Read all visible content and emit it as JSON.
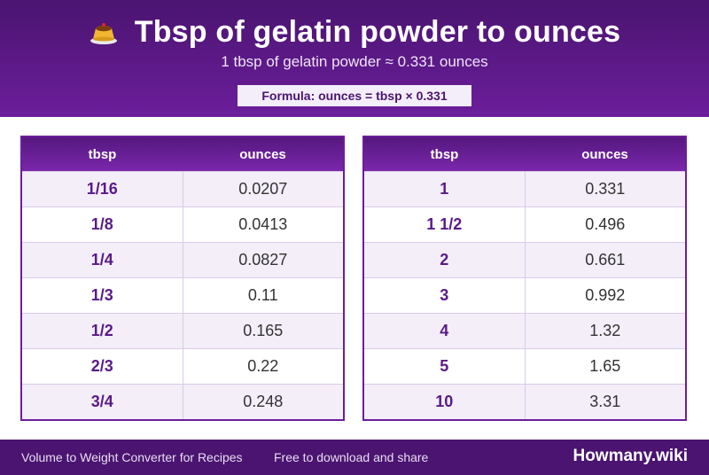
{
  "header": {
    "title": "Tbsp of gelatin powder to ounces",
    "icon": "pudding-icon",
    "subtitle": "1 tbsp of gelatin powder ≈ 0.331 ounces",
    "formula": "Formula: ounces = tbsp × 0.331"
  },
  "tables": [
    {
      "headers": [
        "tbsp",
        "ounces"
      ],
      "rows": [
        [
          "1/16",
          "0.0207"
        ],
        [
          "1/8",
          "0.0413"
        ],
        [
          "1/4",
          "0.0827"
        ],
        [
          "1/3",
          "0.11"
        ],
        [
          "1/2",
          "0.165"
        ],
        [
          "2/3",
          "0.22"
        ],
        [
          "3/4",
          "0.248"
        ]
      ]
    },
    {
      "headers": [
        "tbsp",
        "ounces"
      ],
      "rows": [
        [
          "1",
          "0.331"
        ],
        [
          "1 1/2",
          "0.496"
        ],
        [
          "2",
          "0.661"
        ],
        [
          "3",
          "0.992"
        ],
        [
          "4",
          "1.32"
        ],
        [
          "5",
          "1.65"
        ],
        [
          "10",
          "3.31"
        ]
      ]
    }
  ],
  "footer": {
    "left": "Volume to Weight Converter for Recipes",
    "middle": "Free to download and share",
    "brand": "Howmany.wiki"
  },
  "colors": {
    "accent": "#6c1e9b",
    "header_dark": "#4a1470"
  }
}
